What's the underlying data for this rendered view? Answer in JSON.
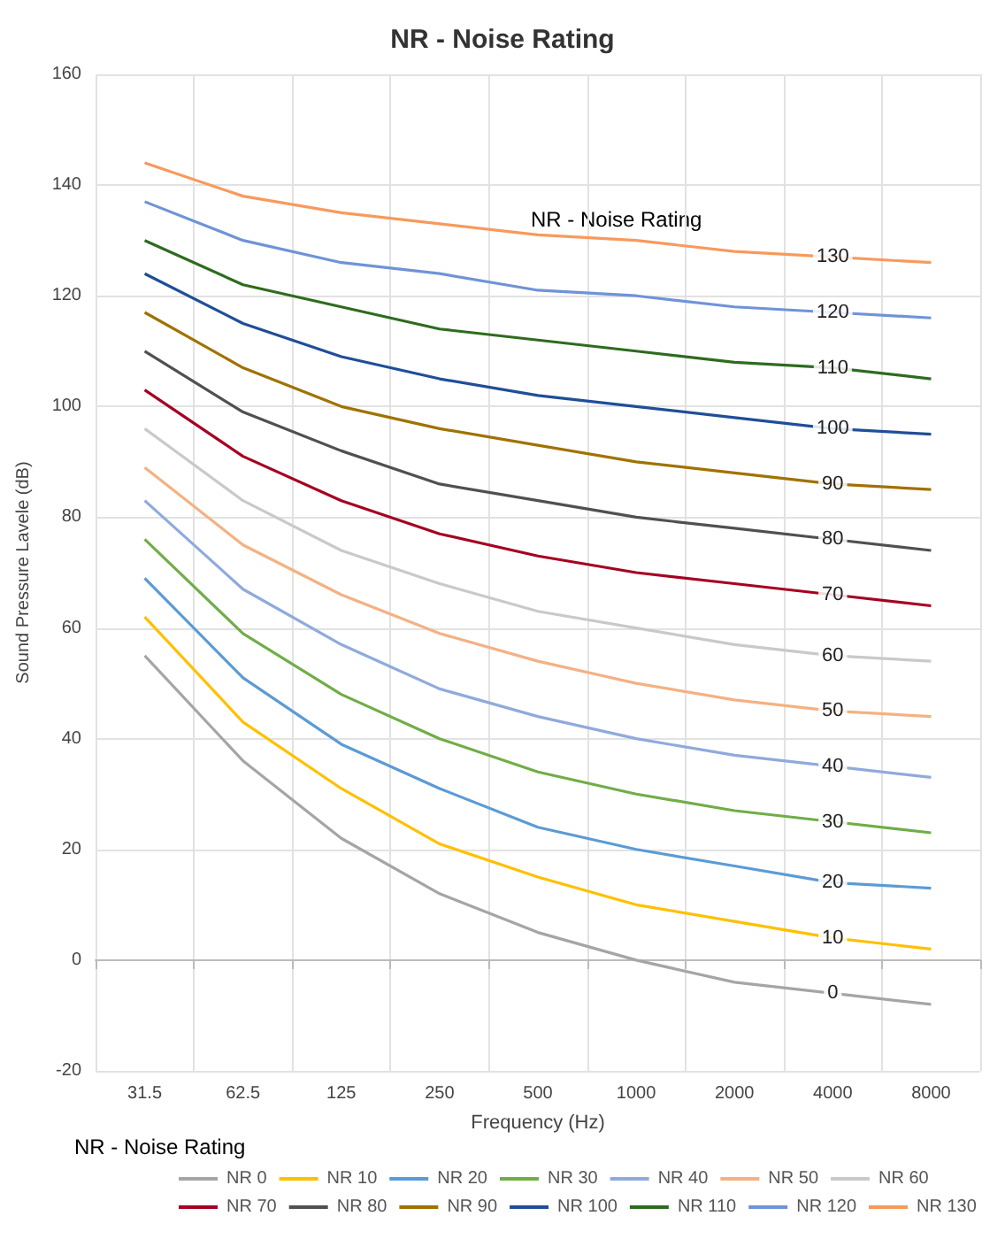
{
  "chart_data": {
    "type": "line",
    "title": "NR - Noise Rating",
    "xlabel": "Frequency (Hz)",
    "ylabel": "Sound Pressure Lavele (dB)",
    "legend_title": "NR - Noise Rating",
    "legend": "bottom",
    "grid": true,
    "marker": "none",
    "line_style": "solid",
    "categories": [
      "31.5",
      "62.5",
      "125",
      "250",
      "500",
      "1000",
      "2000",
      "4000",
      "8000"
    ],
    "ylim": [
      -20,
      160
    ],
    "yticks": [
      -20,
      0,
      20,
      40,
      60,
      80,
      100,
      120,
      140,
      160
    ],
    "series": [
      {
        "name": "NR 0",
        "color": "#a5a5a5",
        "values": [
          55,
          36,
          22,
          12,
          5,
          0,
          -4,
          -6,
          -8
        ]
      },
      {
        "name": "NR 10",
        "color": "#ffc000",
        "values": [
          62,
          43,
          31,
          21,
          15,
          10,
          7,
          4,
          2
        ]
      },
      {
        "name": "NR 20",
        "color": "#5b9bd5",
        "values": [
          69,
          51,
          39,
          31,
          24,
          20,
          17,
          14,
          13
        ]
      },
      {
        "name": "NR 30",
        "color": "#70ad47",
        "values": [
          76,
          59,
          48,
          40,
          34,
          30,
          27,
          25,
          23
        ]
      },
      {
        "name": "NR 40",
        "color": "#8faadc",
        "values": [
          83,
          67,
          57,
          49,
          44,
          40,
          37,
          35,
          33
        ]
      },
      {
        "name": "NR 50",
        "color": "#f4b183",
        "values": [
          89,
          75,
          66,
          59,
          54,
          50,
          47,
          45,
          44
        ]
      },
      {
        "name": "NR 60",
        "color": "#c9c9c9",
        "values": [
          96,
          83,
          74,
          68,
          63,
          60,
          57,
          55,
          54
        ]
      },
      {
        "name": "NR 70",
        "color": "#a50021",
        "values": [
          103,
          91,
          83,
          77,
          73,
          70,
          68,
          66,
          64
        ]
      },
      {
        "name": "NR 80",
        "color": "#505050",
        "values": [
          110,
          99,
          92,
          86,
          83,
          80,
          78,
          76,
          74
        ]
      },
      {
        "name": "NR 90",
        "color": "#a07200",
        "values": [
          117,
          107,
          100,
          96,
          93,
          90,
          88,
          86,
          85
        ]
      },
      {
        "name": "NR 100",
        "color": "#1f4e99",
        "values": [
          124,
          115,
          109,
          105,
          102,
          100,
          98,
          96,
          95
        ]
      },
      {
        "name": "NR 110",
        "color": "#2e6b1f",
        "values": [
          130,
          122,
          118,
          114,
          112,
          110,
          108,
          107,
          105
        ]
      },
      {
        "name": "NR 120",
        "color": "#6f93d8",
        "values": [
          137,
          130,
          126,
          124,
          121,
          120,
          118,
          117,
          116
        ]
      },
      {
        "name": "NR 130",
        "color": "#f79a5c",
        "values": [
          144,
          138,
          135,
          133,
          131,
          130,
          128,
          127,
          126
        ]
      }
    ],
    "annotations": [
      "NR - Noise Rating",
      {
        "text": "0",
        "x": "4000",
        "y": -6
      },
      {
        "text": "10",
        "x": "4000",
        "y": 4
      },
      {
        "text": "20",
        "x": "4000",
        "y": 14
      },
      {
        "text": "30",
        "x": "4000",
        "y": 25
      },
      {
        "text": "40",
        "x": "4000",
        "y": 35
      },
      {
        "text": "50",
        "x": "4000",
        "y": 45
      },
      {
        "text": "60",
        "x": "4000",
        "y": 55
      },
      {
        "text": "70",
        "x": "4000",
        "y": 66
      },
      {
        "text": "80",
        "x": "4000",
        "y": 76
      },
      {
        "text": "90",
        "x": "4000",
        "y": 86
      },
      {
        "text": "100",
        "x": "4000",
        "y": 96
      },
      {
        "text": "110",
        "x": "4000",
        "y": 107
      },
      {
        "text": "120",
        "x": "4000",
        "y": 117
      },
      {
        "text": "130",
        "x": "4000",
        "y": 127
      }
    ]
  }
}
